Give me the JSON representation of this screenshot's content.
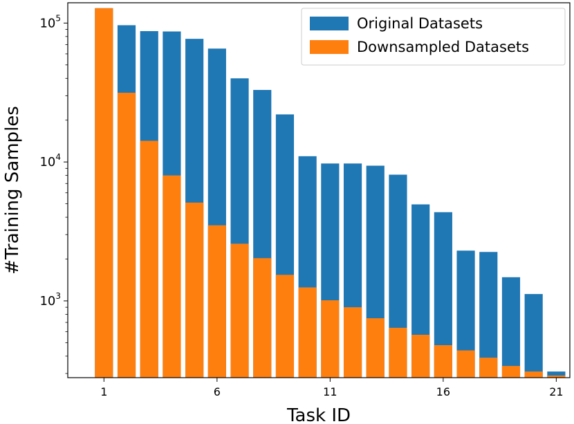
{
  "chart_data": {
    "type": "bar",
    "title": "",
    "xlabel": "Task ID",
    "ylabel": "#Training Samples",
    "yscale": "log",
    "ylim": [
      280,
      140000
    ],
    "xlim": [
      -0.6,
      21.6
    ],
    "grid": false,
    "legend_position": "top-right",
    "overlay": true,
    "x": [
      1,
      2,
      3,
      4,
      5,
      6,
      7,
      8,
      9,
      10,
      11,
      12,
      13,
      14,
      15,
      16,
      17,
      18,
      19,
      20,
      21
    ],
    "x_ticks": [
      "1",
      "6",
      "11",
      "16",
      "21"
    ],
    "y_ticks": [
      {
        "base": "10",
        "exp": "3",
        "value": 1000
      },
      {
        "base": "10",
        "exp": "4",
        "value": 10000
      },
      {
        "base": "10",
        "exp": "5",
        "value": 100000
      }
    ],
    "series": [
      {
        "name": "Original Datasets",
        "color": "#1f77b4",
        "values": [
          128000,
          96500,
          87500,
          87000,
          77000,
          65500,
          40000,
          33000,
          22000,
          11000,
          9750,
          9750,
          9400,
          8100,
          4950,
          4350,
          2300,
          2250,
          1480,
          1120,
          310
        ]
      },
      {
        "name": "Downsampled Datasets",
        "color": "#ff7f0e",
        "values": [
          128000,
          31500,
          14200,
          8000,
          5100,
          3500,
          2580,
          2030,
          1540,
          1250,
          1010,
          900,
          750,
          640,
          570,
          480,
          440,
          390,
          340,
          310,
          290
        ]
      }
    ]
  }
}
